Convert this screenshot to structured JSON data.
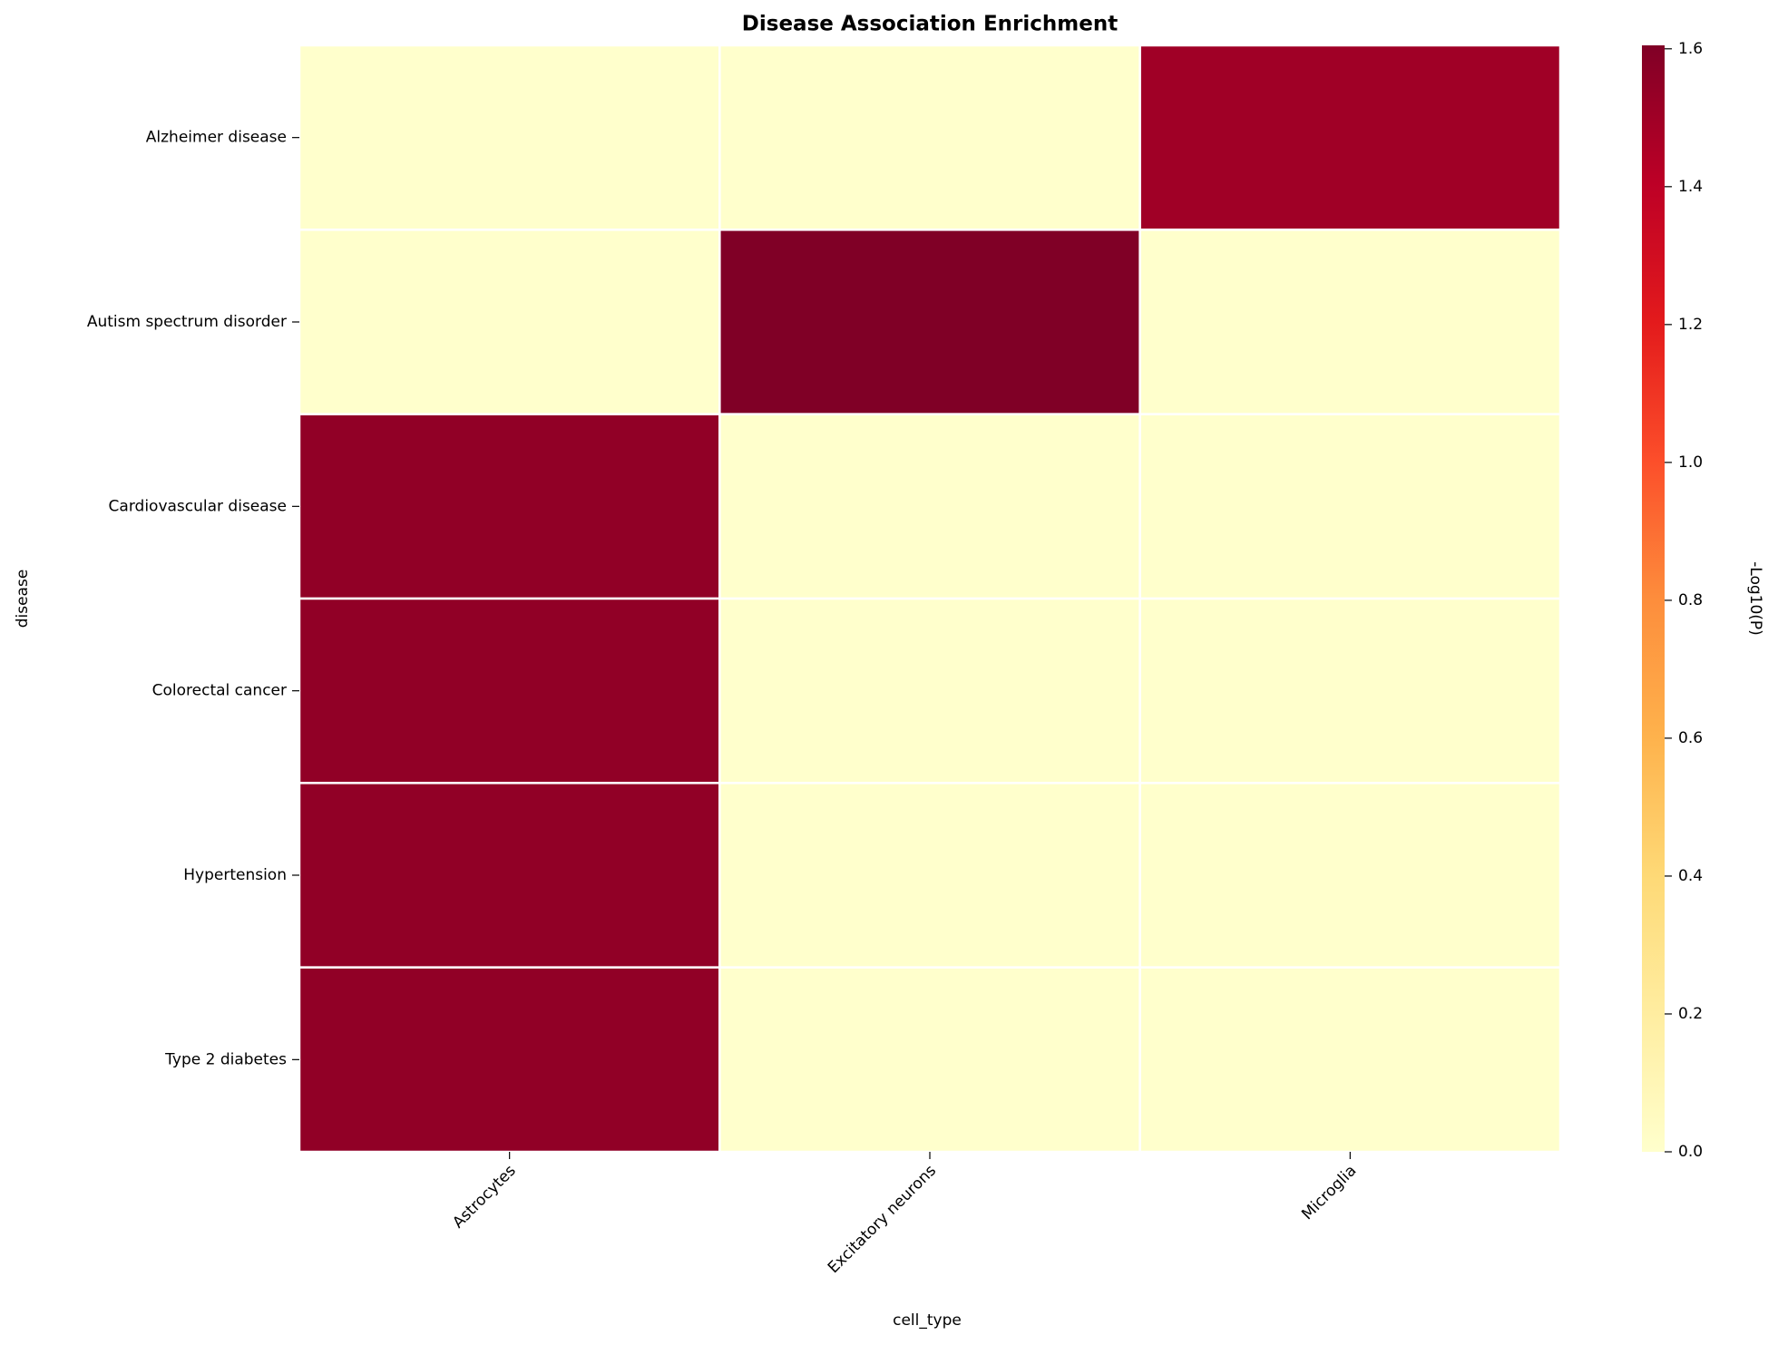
{
  "chart_data": {
    "type": "heatmap",
    "title": "Disease Association Enrichment",
    "xlabel": "cell_type",
    "ylabel": "disease",
    "x_categories": [
      "Astrocytes",
      "Excitatory neurons",
      "Microglia"
    ],
    "y_categories": [
      "Alzheimer disease",
      "Autism spectrum disorder",
      "Cardiovascular disease",
      "Colorectal cancer",
      "Hypertension",
      "Type 2 diabetes"
    ],
    "values": [
      [
        0,
        0,
        1.5
      ],
      [
        0,
        1.605,
        0
      ],
      [
        1.55,
        0,
        0
      ],
      [
        1.55,
        0,
        0
      ],
      [
        1.55,
        0,
        0
      ],
      [
        1.55,
        0,
        0
      ]
    ],
    "colormap": [
      "#ffffcc",
      "#ffeda0",
      "#fed976",
      "#feb24c",
      "#fd8d3c",
      "#fc4e2a",
      "#e31a1c",
      "#bd0026",
      "#800026"
    ],
    "colorbar_label": "-Log10(P)",
    "zlim": [
      0,
      1.605
    ],
    "zticks": [
      {
        "value": 0,
        "label": "0.0"
      },
      {
        "value": 0.2,
        "label": "0.2"
      },
      {
        "value": 0.4,
        "label": "0.4"
      },
      {
        "value": 0.6,
        "label": "0.6"
      },
      {
        "value": 0.8,
        "label": "0.8"
      },
      {
        "value": 1,
        "label": "1.0"
      },
      {
        "value": 1.2,
        "label": "1.2"
      },
      {
        "value": 1.4,
        "label": "1.4"
      },
      {
        "value": 1.6,
        "label": "1.6"
      }
    ]
  }
}
